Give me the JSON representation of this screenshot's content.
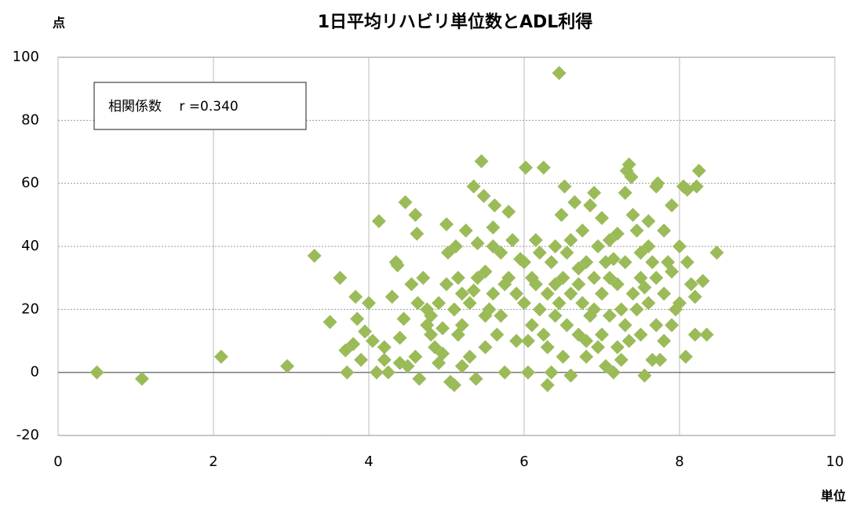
{
  "chart_data": {
    "type": "scatter",
    "title": "1日平均リハビリ単位数とADL利得",
    "y_label": "点",
    "x_label": "単位",
    "annotation": "相関係数　 r =0.340",
    "color": "#9bbb59",
    "xlim": [
      0,
      10
    ],
    "xticks": [
      0,
      2,
      4,
      6,
      8,
      10
    ],
    "ylim": [
      -20,
      100
    ],
    "yticks": [
      -20,
      0,
      20,
      40,
      60,
      80,
      100
    ],
    "grid": true,
    "x": [
      0.5,
      1.08,
      2.1,
      2.95,
      3.3,
      3.5,
      3.63,
      3.7,
      3.72,
      3.8,
      3.83,
      3.85,
      3.9,
      3.95,
      4.0,
      4.05,
      4.1,
      4.13,
      4.2,
      4.25,
      4.3,
      4.35,
      4.37,
      4.4,
      4.45,
      4.47,
      4.5,
      4.55,
      4.6,
      4.62,
      4.63,
      4.65,
      4.7,
      4.75,
      4.8,
      4.85,
      4.9,
      4.95,
      5.0,
      5.02,
      5.05,
      5.1,
      5.12,
      5.15,
      5.2,
      5.25,
      5.3,
      5.35,
      5.38,
      5.4,
      5.45,
      5.48,
      5.5,
      5.55,
      5.6,
      5.62,
      5.65,
      5.7,
      5.75,
      5.8,
      5.85,
      5.9,
      6.02,
      6.05,
      6.1,
      6.15,
      6.2,
      6.25,
      6.3,
      6.35,
      6.4,
      6.45,
      6.48,
      6.52,
      6.55,
      6.6,
      6.65,
      6.7,
      6.75,
      6.8,
      6.85,
      6.9,
      6.95,
      7.0,
      7.05,
      7.1,
      7.15,
      7.2,
      7.25,
      7.3,
      7.32,
      7.35,
      7.38,
      7.4,
      7.45,
      7.5,
      7.55,
      7.6,
      7.65,
      7.7,
      7.72,
      7.75,
      7.8,
      7.85,
      7.9,
      7.95,
      8.0,
      8.05,
      8.08,
      8.1,
      8.15,
      8.2,
      8.22,
      8.25,
      8.3,
      8.35,
      8.48,
      5.0,
      5.1,
      5.2,
      5.3,
      5.4,
      5.5,
      5.6,
      5.7,
      5.8,
      5.9,
      6.0,
      6.0,
      6.1,
      6.2,
      6.3,
      6.3,
      6.4,
      6.4,
      6.5,
      6.5,
      6.6,
      6.6,
      6.7,
      6.7,
      6.8,
      6.8,
      6.9,
      6.9,
      7.0,
      7.0,
      7.1,
      7.1,
      7.2,
      7.2,
      7.3,
      7.3,
      7.4,
      7.5,
      7.5,
      7.6,
      7.6,
      7.7,
      7.7,
      7.8,
      7.8,
      7.9,
      7.9,
      8.0,
      8.1,
      8.2,
      4.8,
      4.9,
      4.6,
      4.4,
      4.2,
      5.2,
      5.5,
      5.6,
      6.15,
      6.25,
      6.45,
      6.55,
      6.75,
      6.85,
      7.05,
      7.25,
      7.45,
      7.65,
      5.75,
      5.95,
      6.05,
      6.35,
      5.35,
      5.15,
      4.95,
      4.75,
      6.95,
      7.15,
      7.35,
      7.55
    ],
    "values": [
      0,
      -2,
      5,
      2,
      37,
      16,
      30,
      7,
      0,
      9,
      24,
      17,
      4,
      13,
      22,
      10,
      0,
      48,
      4,
      0,
      24,
      35,
      34,
      11,
      17,
      54,
      2,
      28,
      50,
      44,
      22,
      -2,
      30,
      20,
      18,
      8,
      3,
      14,
      47,
      38,
      -3,
      -4,
      40,
      12,
      25,
      45,
      5,
      59,
      -2,
      41,
      67,
      56,
      32,
      20,
      46,
      53,
      12,
      38,
      0,
      51,
      42,
      25,
      65,
      10,
      30,
      42,
      20,
      65,
      -4,
      35,
      28,
      95,
      50,
      59,
      15,
      -1,
      54,
      33,
      22,
      10,
      53,
      57,
      40,
      49,
      2,
      30,
      36,
      44,
      4,
      57,
      64,
      66,
      62,
      50,
      20,
      38,
      -1,
      48,
      4,
      59,
      60,
      4,
      45,
      35,
      53,
      20,
      40,
      59,
      5,
      58,
      28,
      24,
      59,
      64,
      29,
      12,
      38,
      28,
      20,
      15,
      22,
      30,
      8,
      25,
      18,
      30,
      10,
      22,
      35,
      15,
      38,
      25,
      8,
      18,
      40,
      30,
      5,
      25,
      42,
      12,
      28,
      35,
      5,
      20,
      30,
      12,
      25,
      42,
      18,
      8,
      28,
      15,
      35,
      25,
      12,
      30,
      22,
      40,
      15,
      30,
      25,
      10,
      32,
      15,
      22,
      35,
      12,
      12,
      22,
      5,
      3,
      8,
      2,
      18,
      40,
      28,
      12,
      22,
      38,
      45,
      18,
      35,
      20,
      45,
      35,
      28,
      36,
      0,
      0,
      26,
      30,
      6,
      15,
      8,
      0,
      10,
      27
    ]
  }
}
